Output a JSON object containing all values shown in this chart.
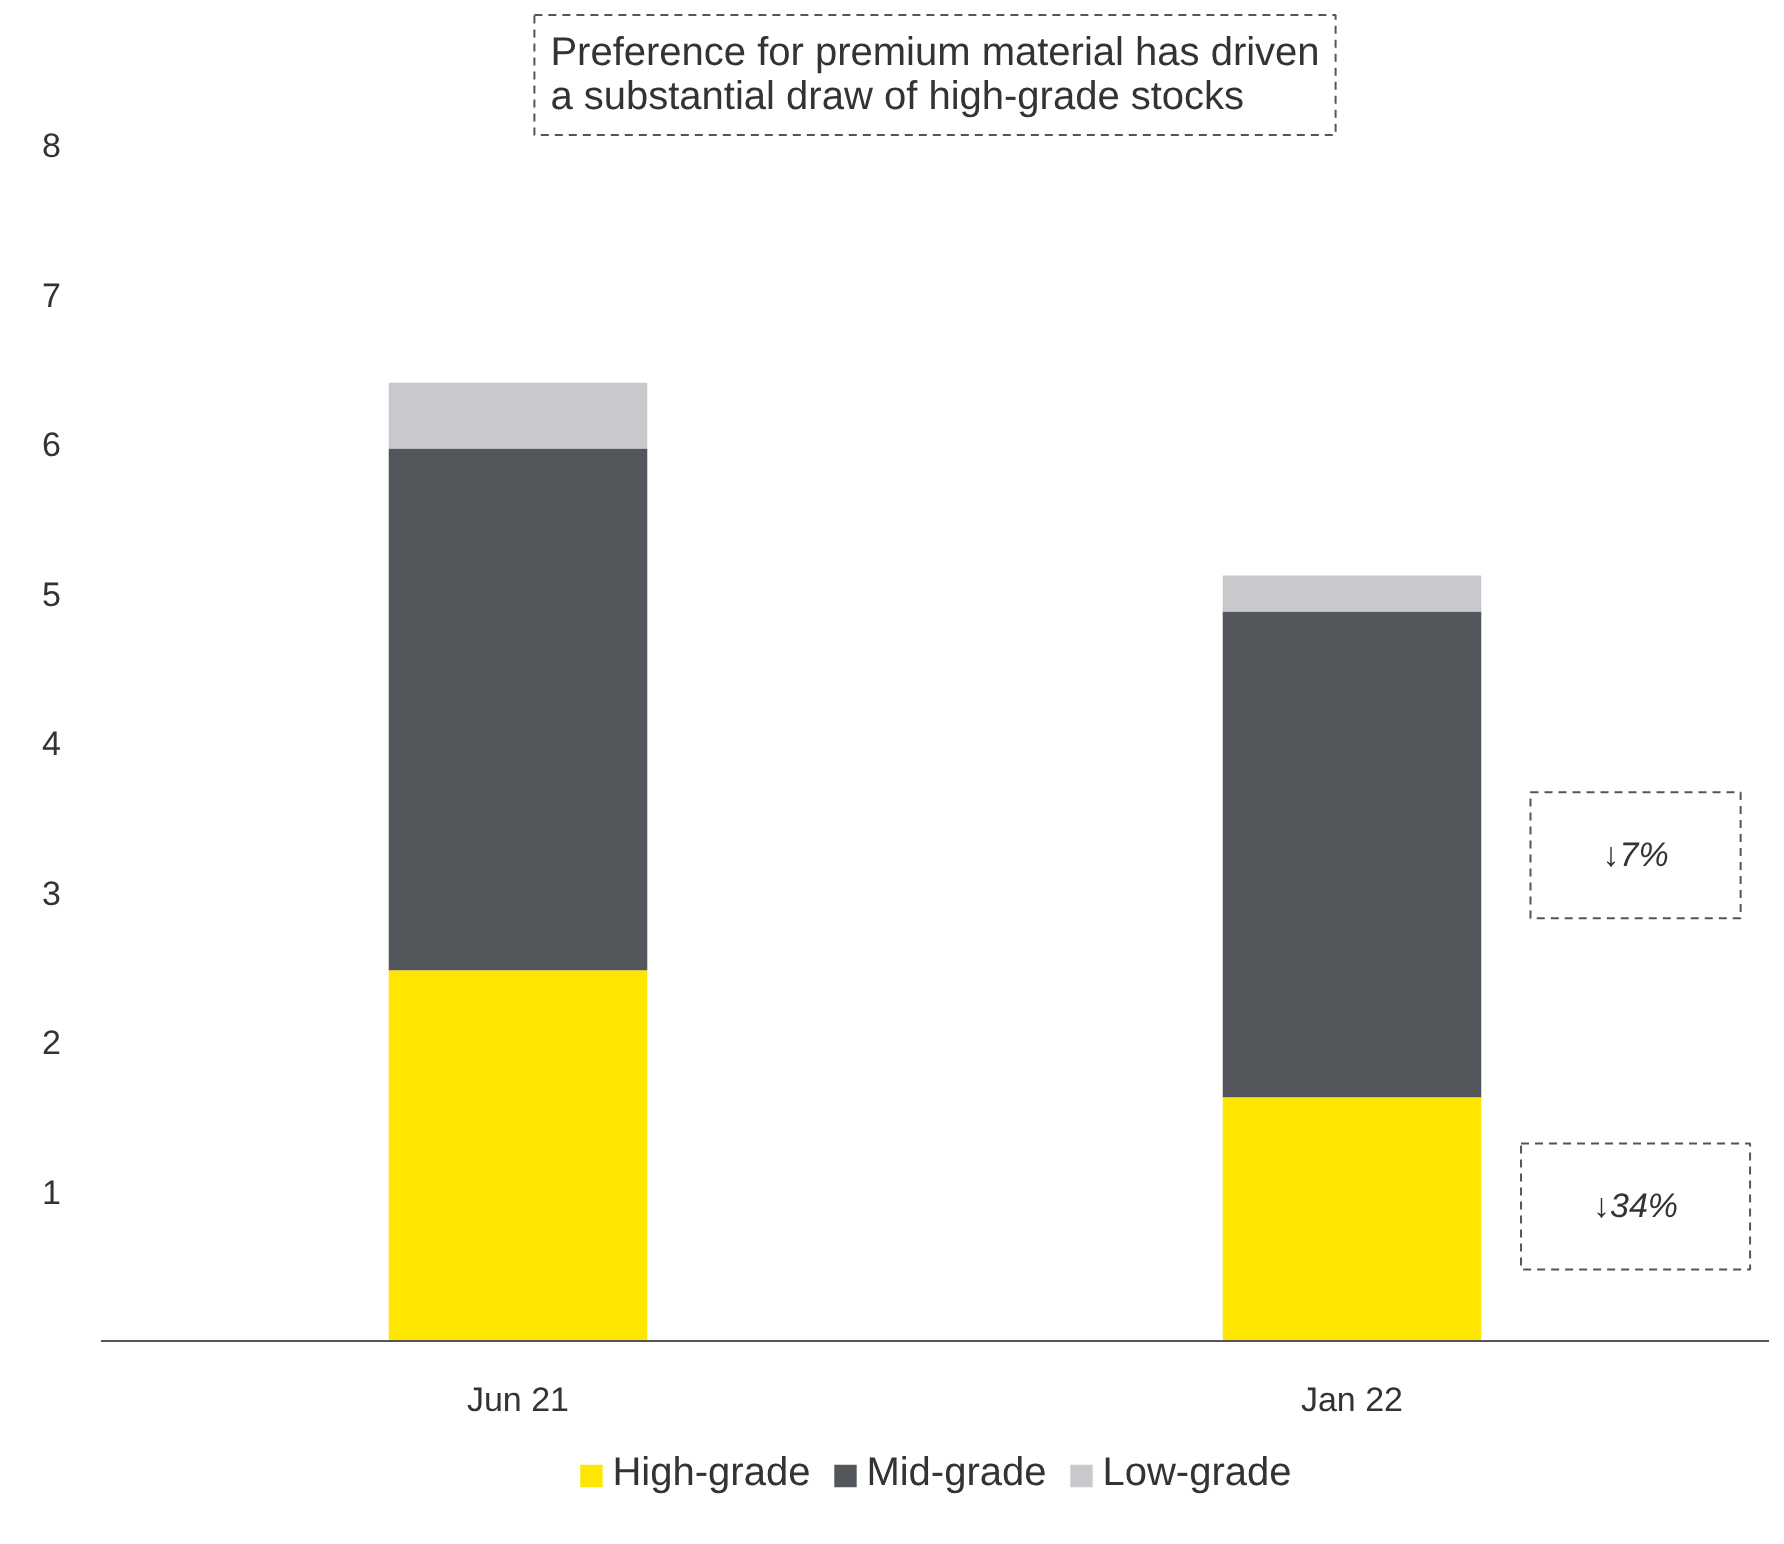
{
  "chart_data": {
    "type": "bar",
    "stacked": true,
    "categories": [
      "Jun 21",
      "Jan 22"
    ],
    "series": [
      {
        "name": "High-grade",
        "color": "#ffe600",
        "values": [
          2.48,
          1.63
        ]
      },
      {
        "name": "Mid-grade",
        "color": "#53565a",
        "values": [
          3.49,
          3.25
        ]
      },
      {
        "name": "Low-grade",
        "color": "#c8c9cc",
        "values": [
          0.44,
          0.24
        ]
      }
    ],
    "ylim": [
      0,
      8
    ],
    "yticks": [
      1,
      2,
      3,
      4,
      5,
      6,
      7,
      8
    ],
    "grid": false,
    "legend": "bottom",
    "annotations": [
      "Preference for premium material has driven\na substantial draw of high-grade stocks",
      "↓7%",
      "↓34%"
    ]
  }
}
